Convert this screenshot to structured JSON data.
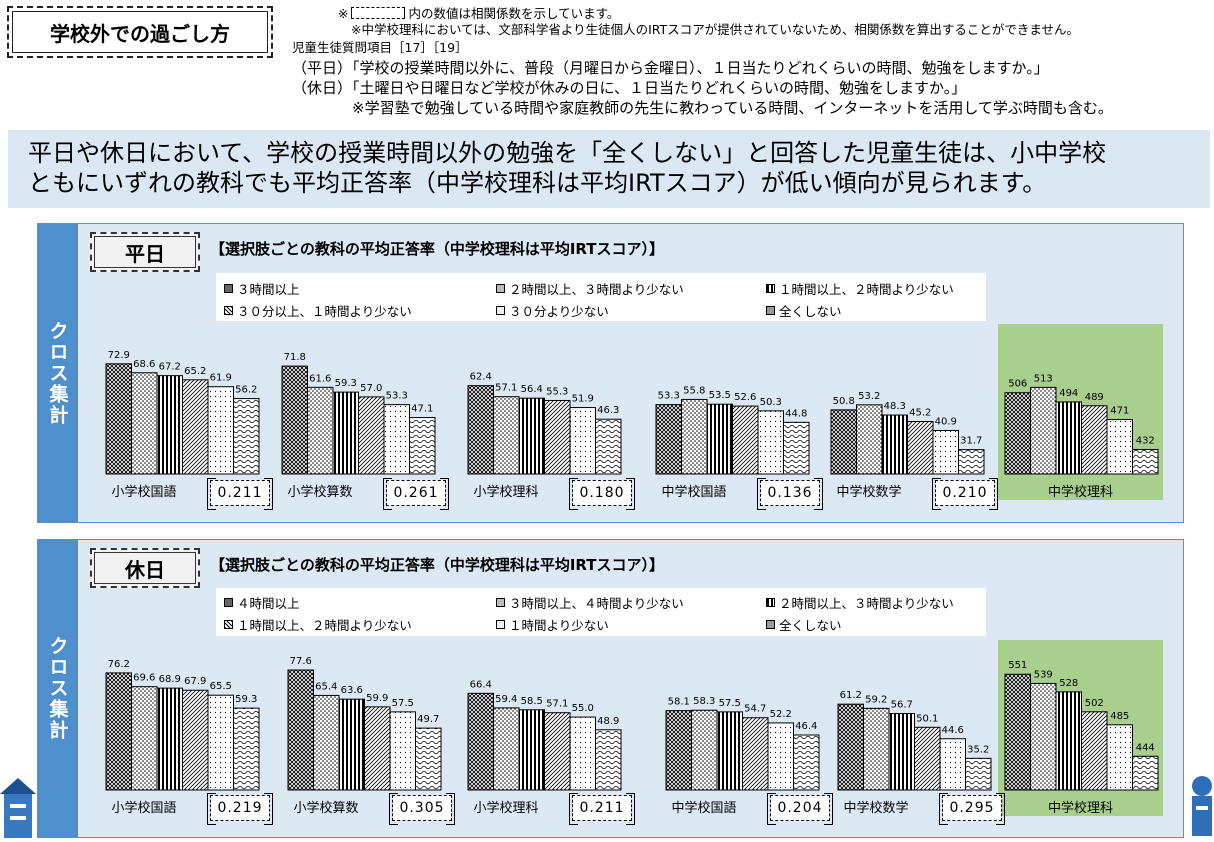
{
  "title": "学校外での過ごし方",
  "notes": {
    "line1_mark": "※",
    "line1": "内の数値は相関係数を示しています。",
    "line2": "※中学校理科においては、文部科学省より生徒個人のIRTスコアが提供されていないため、相関係数を算出することができません。",
    "line3": "児童生徒質問項目［17］［19］",
    "line4": "（平日）「学校の授業時間以外に、普段（月曜日から金曜日）、１日当たりどれくらいの時間、勉強をしますか。」",
    "line5": "（休日）「土曜日や日曜日など学校が休みの日に、１日当たりどれくらいの時間、勉強をしますか。」",
    "line6": "※学習塾で勉強している時間や家庭教師の先生に教わっている時間、インターネットを活用して学ぶ時間も含む。"
  },
  "headline": {
    "line1": "平日や休日において、学校の授業時間以外の勉強を「全くしない」と回答した児童生徒は、小中学校",
    "line2": "ともにいずれの教科でも平均正答率（中学校理科は平均IRTスコア）が低い傾向が見られます。"
  },
  "side_label": "クロス集計",
  "panels": [
    {
      "tag": "平日",
      "title": "【選択肢ごとの教科の平均正答率（中学校理科は平均IRTスコア）】",
      "legend": [
        "３時間以上",
        "２時間以上、３時間より少ない",
        "１時間以上、２時間より少ない",
        "３０分以上、１時間より少ない",
        "３０分より少ない",
        "全くしない"
      ]
    },
    {
      "tag": "休日",
      "title": "【選択肢ごとの教科の平均正答率（中学校理科は平均IRTスコア）】",
      "legend": [
        "４時間以上",
        "３時間以上、４時間より少ない",
        "２時間以上、３時間より少ない",
        "１時間以上、２時間より少ない",
        "１時間より少ない",
        "全くしない"
      ]
    }
  ],
  "chart_data": [
    {
      "type": "bar",
      "title": "平日",
      "series_labels": [
        "３時間以上",
        "２時間以上、３時間より少ない",
        "１時間以上、２時間より少ない",
        "３０分以上、１時間より少ない",
        "３０分より少ない",
        "全くしない"
      ],
      "groups": [
        {
          "subject": "小学校国語",
          "values": [
            72.9,
            68.6,
            67.2,
            65.2,
            61.9,
            56.2
          ],
          "labels": [
            "72.9",
            "68.6",
            "67.2",
            "65.2",
            "61.9",
            "56.2"
          ],
          "corr": "0.211"
        },
        {
          "subject": "小学校算数",
          "values": [
            71.8,
            61.6,
            59.3,
            57.0,
            53.3,
            47.1
          ],
          "labels": [
            "71.8",
            "61.6",
            "59.3",
            "57.0",
            "53.3",
            "47.1"
          ],
          "corr": "0.261"
        },
        {
          "subject": "小学校理科",
          "values": [
            62.4,
            57.1,
            56.4,
            55.3,
            51.9,
            46.3
          ],
          "labels": [
            "62.4",
            "57.1",
            "56.4",
            "55.3",
            "51.9",
            "46.3"
          ],
          "corr": "0.180"
        },
        {
          "subject": "中学校国語",
          "values": [
            53.3,
            55.8,
            53.5,
            52.6,
            50.3,
            44.8
          ],
          "labels": [
            "53.3",
            "55.8",
            "53.5",
            "52.6",
            "50.3",
            "44.8"
          ],
          "corr": "0.136"
        },
        {
          "subject": "中学校数学",
          "values": [
            50.8,
            53.2,
            48.3,
            45.2,
            40.9,
            31.7
          ],
          "labels": [
            "50.8",
            "53.2",
            "48.3",
            "45.2",
            "40.9",
            "31.7"
          ],
          "corr": "0.210"
        },
        {
          "subject": "中学校理科",
          "values": [
            506,
            513,
            494,
            489,
            471,
            432
          ],
          "labels": [
            "506",
            "513",
            "494",
            "489",
            "471",
            "432"
          ],
          "corr": "",
          "irt": true
        }
      ]
    },
    {
      "type": "bar",
      "title": "休日",
      "series_labels": [
        "４時間以上",
        "３時間以上、４時間より少ない",
        "２時間以上、３時間より少ない",
        "１時間以上、２時間より少ない",
        "１時間より少ない",
        "全くしない"
      ],
      "groups": [
        {
          "subject": "小学校国語",
          "values": [
            76.2,
            69.6,
            68.9,
            67.9,
            65.5,
            59.3
          ],
          "labels": [
            "76.2",
            "69.6",
            "68.9",
            "67.9",
            "65.5",
            "59.3"
          ],
          "corr": "0.219"
        },
        {
          "subject": "小学校算数",
          "values": [
            77.6,
            65.4,
            63.6,
            59.9,
            57.5,
            49.7
          ],
          "labels": [
            "77.6",
            "65.4",
            "63.6",
            "59.9",
            "57.5",
            "49.7"
          ],
          "corr": "0.305"
        },
        {
          "subject": "小学校理科",
          "values": [
            66.4,
            59.4,
            58.5,
            57.1,
            55.0,
            48.9
          ],
          "labels": [
            "66.4",
            "59.4",
            "58.5",
            "57.1",
            "55.0",
            "48.9"
          ],
          "corr": "0.211"
        },
        {
          "subject": "中学校国語",
          "values": [
            58.1,
            58.3,
            57.5,
            54.7,
            52.2,
            46.4
          ],
          "labels": [
            "58.1",
            "58.3",
            "57.5",
            "54.7",
            "52.2",
            "46.4"
          ],
          "corr": "0.204"
        },
        {
          "subject": "中学校数学",
          "values": [
            61.2,
            59.2,
            56.7,
            50.1,
            44.6,
            35.2
          ],
          "labels": [
            "61.2",
            "59.2",
            "56.7",
            "50.1",
            "44.6",
            "35.2"
          ],
          "corr": "0.295"
        },
        {
          "subject": "中学校理科",
          "values": [
            551,
            539,
            528,
            502,
            485,
            444
          ],
          "labels": [
            "551",
            "539",
            "528",
            "502",
            "485",
            "444"
          ],
          "corr": "",
          "irt": true
        }
      ]
    }
  ]
}
